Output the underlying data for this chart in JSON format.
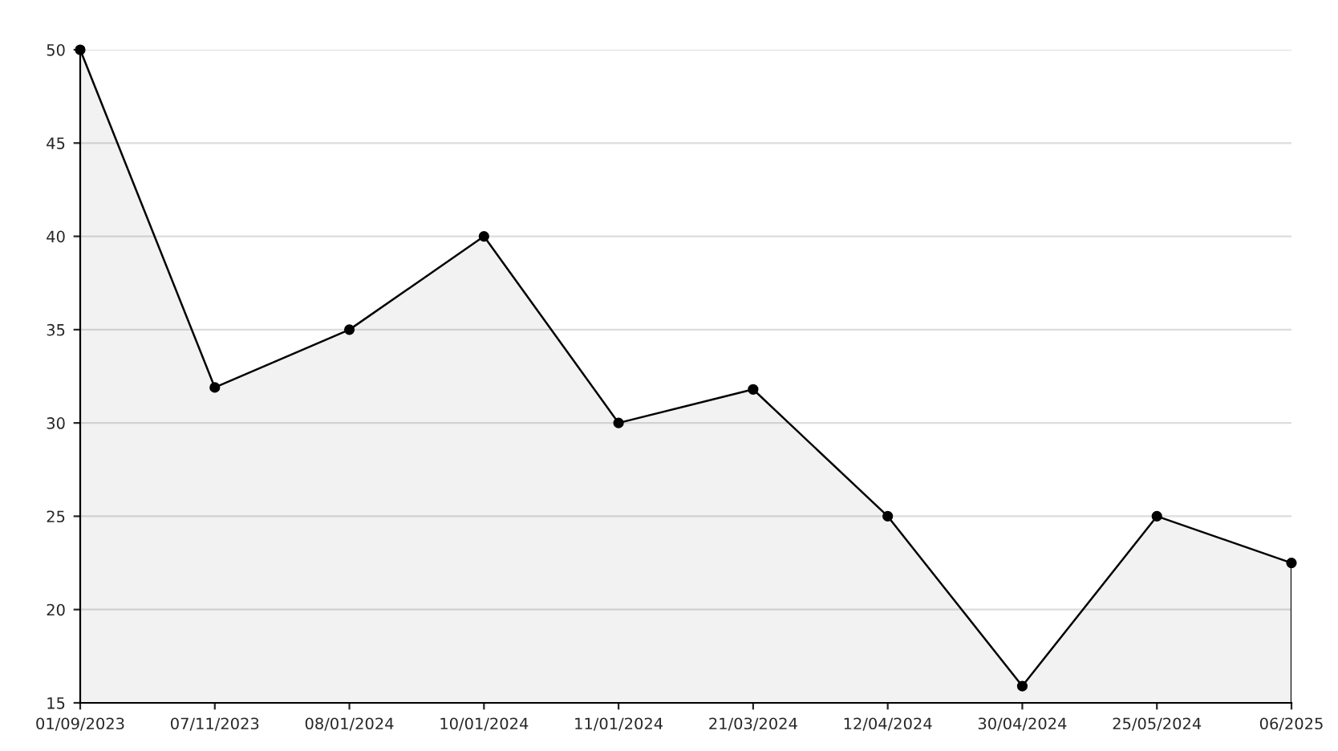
{
  "chart_data": {
    "type": "area",
    "categories": [
      "01/09/2023",
      "07/11/2023",
      "08/01/2024",
      "10/01/2024",
      "11/01/2024",
      "21/03/2024",
      "12/04/2024",
      "30/04/2024",
      "25/05/2024",
      "06/2025"
    ],
    "series": [
      {
        "color": "#000000",
        "values": [
          50,
          31.9,
          35,
          40,
          30,
          31.8,
          25,
          15.9,
          25,
          22.5
        ]
      }
    ],
    "ylim": [
      15,
      50
    ],
    "yticks": [
      15,
      20,
      25,
      30,
      35,
      40,
      45,
      50
    ],
    "grid": "y",
    "marker": "circle",
    "line_style": "solid",
    "legend": false
  }
}
